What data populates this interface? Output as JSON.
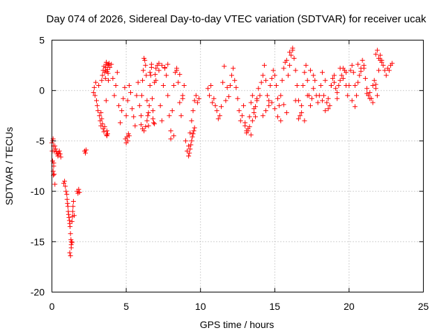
{
  "chart_data": {
    "type": "scatter",
    "title": "Day 074 of 2026, Sidereal Day-to-day VTEC variation (SDTVAR) for receiver ucak",
    "xlabel": "GPS time / hours",
    "ylabel": "SDTVAR / TECUs",
    "xlim": [
      0,
      25
    ],
    "ylim": [
      -20,
      5
    ],
    "xticks": [
      0,
      5,
      10,
      15,
      20,
      25
    ],
    "yticks": [
      -20,
      -15,
      -10,
      -5,
      0,
      5
    ],
    "xtick_labels": [
      "0",
      "5",
      "10",
      "15",
      "20",
      "25"
    ],
    "ytick_labels": [
      "-20",
      "-15",
      "-10",
      "-5",
      "0",
      "5"
    ],
    "grid": true,
    "marker": "+",
    "color": "#ff0000",
    "series": [
      {
        "name": "SDTVAR",
        "x": [
          0.0,
          0.02,
          0.05,
          0.08,
          0.1,
          0.12,
          0.15,
          0.2,
          0.25,
          0.3,
          0.35,
          0.4,
          0.45,
          0.5,
          0.55,
          0.6,
          0.05,
          0.1,
          0.15,
          0.2,
          0.08,
          0.12,
          0.8,
          0.85,
          0.9,
          0.95,
          1.0,
          1.02,
          1.05,
          1.08,
          1.1,
          1.12,
          1.15,
          1.18,
          1.2,
          1.22,
          1.25,
          1.28,
          1.3,
          1.32,
          1.35,
          1.38,
          1.4,
          1.42,
          1.45,
          1.5,
          1.2,
          1.25,
          1.3,
          1.35,
          1.7,
          1.75,
          1.8,
          1.85,
          2.2,
          2.25,
          2.3,
          2.8,
          2.85,
          2.9,
          2.95,
          3.0,
          3.05,
          3.1,
          3.15,
          3.2,
          3.25,
          3.3,
          3.35,
          3.4,
          3.45,
          3.5,
          3.55,
          3.6,
          3.65,
          3.7,
          3.75,
          3.8,
          3.85,
          3.9,
          3.3,
          3.35,
          3.4,
          3.45,
          3.5,
          3.55,
          3.6,
          3.62,
          3.64,
          3.66,
          3.68,
          3.7,
          3.72,
          3.74,
          3.76,
          3.78,
          3.8,
          4.0,
          4.1,
          4.2,
          4.3,
          4.4,
          4.5,
          4.6,
          4.7,
          4.8,
          4.9,
          5.0,
          5.1,
          5.2,
          5.3,
          5.4,
          5.5,
          5.6,
          5.7,
          5.8,
          5.9,
          4.95,
          5.0,
          5.05,
          5.1,
          5.15,
          5.2,
          6.0,
          6.05,
          6.1,
          6.15,
          6.2,
          6.25,
          6.3,
          6.35,
          6.4,
          6.45,
          6.5,
          6.55,
          6.6,
          6.65,
          6.7,
          6.75,
          6.8,
          6.85,
          6.9,
          6.95,
          7.0,
          6.0,
          6.1,
          6.2,
          6.3,
          6.4,
          6.5,
          6.6,
          6.7,
          6.8,
          6.9,
          7.0,
          7.1,
          7.2,
          7.3,
          7.4,
          7.5,
          7.6,
          7.7,
          7.8,
          7.9,
          8.0,
          8.1,
          8.2,
          8.3,
          8.4,
          8.5,
          8.6,
          8.7,
          8.8,
          8.9,
          7.2,
          7.4,
          7.6,
          7.8,
          8.0,
          8.2,
          8.4,
          8.6,
          8.8,
          9.0,
          9.1,
          9.2,
          9.3,
          9.4,
          9.5,
          9.6,
          9.7,
          9.8,
          9.9,
          9.2,
          9.25,
          9.3,
          9.35,
          9.4,
          9.45,
          9.5,
          9.55,
          9.6,
          10.5,
          10.6,
          10.7,
          10.8,
          10.9,
          11.0,
          11.1,
          11.2,
          11.3,
          11.4,
          11.5,
          11.6,
          11.7,
          11.8,
          11.9,
          12.0,
          12.1,
          12.2,
          12.3,
          12.4,
          12.5,
          12.6,
          12.7,
          12.8,
          12.9,
          13.0,
          13.1,
          13.2,
          13.3,
          13.4,
          13.5,
          13.6,
          13.7,
          13.8,
          13.9,
          13.0,
          13.1,
          13.2,
          13.3,
          13.4,
          13.5,
          13.6,
          13.7,
          13.8,
          14.0,
          14.1,
          14.2,
          14.3,
          14.4,
          14.5,
          14.6,
          14.7,
          14.8,
          14.9,
          15.0,
          15.1,
          15.2,
          15.3,
          15.4,
          15.5,
          15.6,
          15.7,
          15.8,
          15.9,
          14.2,
          14.4,
          14.6,
          14.8,
          15.0,
          15.2,
          15.4,
          15.6,
          15.8,
          16.0,
          16.1,
          16.2,
          16.3,
          16.4,
          16.5,
          16.6,
          16.7,
          16.8,
          16.9,
          17.0,
          17.1,
          17.2,
          17.3,
          17.4,
          17.5,
          17.6,
          17.7,
          17.8,
          17.9,
          16.0,
          16.2,
          16.4,
          16.6,
          16.8,
          17.0,
          17.2,
          17.4,
          17.6,
          18.0,
          18.1,
          18.2,
          18.3,
          18.4,
          18.5,
          18.6,
          18.7,
          18.8,
          18.9,
          19.0,
          19.1,
          19.2,
          19.3,
          19.4,
          19.5,
          19.6,
          19.7,
          19.8,
          19.9,
          18.2,
          18.4,
          18.6,
          18.8,
          19.0,
          19.2,
          19.4,
          19.6,
          19.8,
          20.0,
          20.1,
          20.2,
          20.3,
          20.4,
          20.5,
          20.6,
          20.7,
          20.8,
          20.9,
          21.0,
          21.1,
          21.2,
          21.3,
          21.4,
          21.5,
          21.6,
          21.7,
          21.8,
          21.9,
          20.2,
          20.4,
          20.6,
          20.8,
          21.0,
          21.2,
          21.4,
          21.6,
          21.8,
          22.0,
          22.1,
          22.2,
          22.3,
          22.4,
          22.5,
          22.6,
          22.7,
          22.8,
          22.9,
          21.8,
          21.9,
          22.0,
          22.1,
          22.2
        ],
        "y": [
          -5.2,
          -6.0,
          -7.0,
          -8.0,
          -8.4,
          -7.5,
          -6.0,
          -5.5,
          -5.8,
          -6.1,
          -6.3,
          -6.5,
          -6.2,
          -6.0,
          -6.3,
          -6.6,
          -5.0,
          -5.5,
          -8.3,
          -9.3,
          -4.8,
          -7.2,
          -9.2,
          -9.0,
          -9.5,
          -10.0,
          -10.3,
          -10.8,
          -11.2,
          -11.5,
          -12.0,
          -12.3,
          -12.6,
          -12.9,
          -13.2,
          -13.5,
          -14.2,
          -14.8,
          -15.3,
          -15.0,
          -13.0,
          -12.5,
          -12.0,
          -11.5,
          -11.0,
          -12.4,
          -16.1,
          -16.4,
          -15.6,
          -15.1,
          -10.0,
          -10.2,
          -9.8,
          -10.1,
          -6.0,
          -6.2,
          -5.9,
          -0.2,
          0.3,
          -0.5,
          0.8,
          -1.0,
          -1.5,
          -2.0,
          0.5,
          -2.5,
          -3.0,
          -3.5,
          1.0,
          1.5,
          2.0,
          2.4,
          1.8,
          1.2,
          -1.0,
          -4.0,
          -4.3,
          2.5,
          2.7,
          2.3,
          -2.2,
          -2.8,
          -3.3,
          -3.8,
          -4.1,
          -3.6,
          2.0,
          2.3,
          2.6,
          2.8,
          -4.4,
          -4.5,
          1.9,
          2.1,
          2.6,
          1.7,
          1.0,
          2.6,
          1.2,
          -0.5,
          0.5,
          1.8,
          -1.5,
          -3.2,
          -2.0,
          -0.8,
          0.3,
          -2.5,
          -1.0,
          0.5,
          -0.2,
          -1.8,
          -2.6,
          -3.5,
          -0.5,
          0.8,
          -1.5,
          -4.8,
          -5.2,
          -4.6,
          -5.0,
          -4.3,
          -4.5,
          -2.5,
          -0.5,
          1.0,
          2.0,
          3.2,
          3.0,
          2.5,
          1.5,
          -1.0,
          -2.5,
          -3.5,
          -1.5,
          0.5,
          1.5,
          2.3,
          -0.8,
          -2.0,
          -3.2,
          0.8,
          1.6,
          2.2,
          -3.4,
          -3.8,
          -4.0,
          -3.6,
          -3.0,
          -2.2,
          1.8,
          2.6,
          -2.8,
          -3.3,
          1.0,
          2.5,
          2.0,
          -1.5,
          -3.0,
          0.5,
          2.2,
          1.5,
          -0.5,
          -2.5,
          -4.0,
          -2.0,
          0.5,
          1.8,
          2.2,
          0.8,
          -1.2,
          -2.5,
          -0.5,
          0.5,
          2.7,
          2.5,
          2.3,
          2.6,
          -4.8,
          -4.5,
          2.0,
          1.6,
          -0.8,
          -5.0,
          -6.0,
          -5.5,
          -4.2,
          -3.0,
          -2.0,
          -1.0,
          -0.5,
          -1.2,
          -0.8,
          -6.5,
          -6.2,
          -5.8,
          -5.4,
          -5.0,
          -4.6,
          -4.3,
          -4.0,
          -3.7,
          0.2,
          -0.5,
          0.5,
          -1.2,
          -0.8,
          -1.5,
          -2.0,
          -2.8,
          -2.5,
          -1.6,
          0.8,
          2.4,
          -1.0,
          0.3,
          -0.6,
          0.5,
          1.5,
          2.2,
          1.0,
          0.3,
          -0.8,
          -2.0,
          -3.0,
          -2.5,
          -1.5,
          -3.2,
          -4.0,
          -3.8,
          -2.6,
          -1.2,
          -0.5,
          -1.8,
          -2.6,
          -1.0,
          0.2,
          -3.5,
          -4.2,
          -4.0,
          -3.6,
          -4.4,
          -3.0,
          -2.2,
          -1.6,
          -0.8,
          -0.5,
          0.8,
          1.5,
          2.5,
          1.0,
          -0.5,
          -1.0,
          0.5,
          1.2,
          2.0,
          1.5,
          0.5,
          -0.8,
          -1.5,
          -0.5,
          1.0,
          2.2,
          2.8,
          3.0,
          1.5,
          -2.5,
          -2.0,
          -1.5,
          -1.2,
          -1.8,
          -2.6,
          -3.0,
          -1.4,
          -2.2,
          2.5,
          3.5,
          4.0,
          3.2,
          2.0,
          0.5,
          -1.0,
          -2.5,
          -1.5,
          0.5,
          1.8,
          2.5,
          1.0,
          -0.5,
          -1.5,
          -0.8,
          0.2,
          1.0,
          -0.5,
          -1.2,
          3.8,
          4.2,
          -1.0,
          -2.8,
          -2.2,
          -3.0,
          -0.5,
          2.0,
          1.5,
          -0.5,
          0.5,
          -1.0,
          -0.5,
          -2.0,
          -1.2,
          -0.8,
          -1.5,
          0.5,
          1.2,
          0.8,
          0.2,
          -0.2,
          0.5,
          1.0,
          1.5,
          2.2,
          2.0,
          0.5,
          -0.5,
          1.8,
          1.0,
          -1.8,
          0.5,
          1.5,
          -0.8,
          2.2,
          1.2,
          1.8,
          0.5,
          2.0,
          2.5,
          1.8,
          0.5,
          -0.5,
          0.8,
          1.5,
          2.2,
          3.0,
          2.5,
          1.2,
          0.2,
          -0.5,
          -0.2,
          -0.8,
          0.5,
          1.0,
          0.2,
          -0.5,
          -1.0,
          -1.6,
          2.6,
          1.9,
          2.2,
          -0.3,
          -0.8,
          -1.2,
          0.6,
          2.0,
          3.5,
          3.0,
          2.5,
          2.0,
          1.5,
          2.2,
          2.0,
          2.5,
          2.7,
          3.6,
          4.0,
          3.2,
          3.0,
          2.8
        ]
      }
    ]
  }
}
